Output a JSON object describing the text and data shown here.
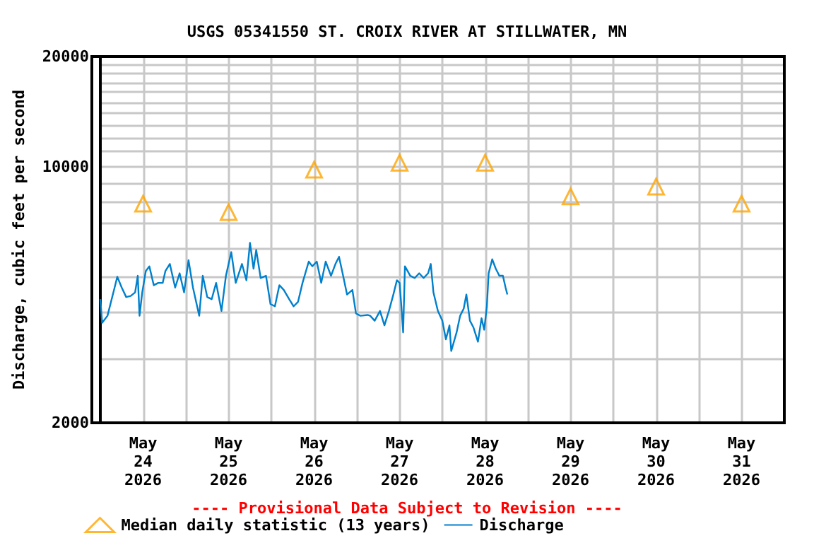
{
  "chart_data": {
    "type": "line",
    "title": "USGS 05341550 ST. CROIX RIVER AT STILLWATER, MN",
    "ylabel": "Discharge, cubic feet per second",
    "annotations": [
      "---- Provisional Data Subject to Revision ----"
    ],
    "log": true,
    "grid": true,
    "legend": "bottom",
    "xlim": [
      "2026-05-24T00:00",
      "2026-06-01T00:00"
    ],
    "xticks": [
      {
        "value": "2026-05-24T12:00",
        "label": "May\n24\n2026"
      },
      {
        "value": "2026-05-25T12:00",
        "label": "May\n25\n2026"
      },
      {
        "value": "2026-05-26T12:00",
        "label": "May\n26\n2026"
      },
      {
        "value": "2026-05-27T12:00",
        "label": "May\n27\n2026"
      },
      {
        "value": "2026-05-28T12:00",
        "label": "May\n28\n2026"
      },
      {
        "value": "2026-05-29T12:00",
        "label": "May\n29\n2026"
      },
      {
        "value": "2026-05-30T12:00",
        "label": "May\n30\n2026"
      },
      {
        "value": "2026-05-31T12:00",
        "label": "May\n31\n2026"
      },
      {
        "value": "2026-05-25T00:00",
        "label": null
      },
      {
        "value": "2026-05-26T00:00",
        "label": null
      },
      {
        "value": "2026-05-27T00:00",
        "label": null
      },
      {
        "value": "2026-05-28T00:00",
        "label": null
      },
      {
        "value": "2026-05-29T00:00",
        "label": null
      },
      {
        "value": "2026-05-30T00:00",
        "label": null
      },
      {
        "value": "2026-05-31T00:00",
        "label": null
      }
    ],
    "ylim": [
      2000,
      20000
    ],
    "yticks": [
      2000,
      {
        "value": 3000,
        "label": null
      },
      {
        "value": 4000,
        "label": null
      },
      {
        "value": 5000,
        "label": null
      },
      {
        "value": 6000,
        "label": null
      },
      {
        "value": 7000,
        "label": null
      },
      {
        "value": 8000,
        "label": null
      },
      {
        "value": 9000,
        "label": null
      },
      10000,
      {
        "value": 11000,
        "label": null
      },
      {
        "value": 12000,
        "label": null
      },
      {
        "value": 13000,
        "label": null
      },
      {
        "value": 14000,
        "label": null
      },
      {
        "value": 15000,
        "label": null
      },
      {
        "value": 16000,
        "label": null
      },
      {
        "value": 17000,
        "label": null
      },
      {
        "value": 18000,
        "label": null
      },
      {
        "value": 19000,
        "label": null
      },
      20000
    ],
    "series": [
      {
        "name": "Median daily statistic (13 years)",
        "type": "scatter",
        "marker": "triangle",
        "color": "#ffa500",
        "x": [
          "2026-05-24T12:00",
          "2026-05-25T12:00",
          "2026-05-26T12:00",
          "2026-05-27T12:00",
          "2026-05-28T12:00",
          "2026-05-29T12:00",
          "2026-05-30T12:00",
          "2026-05-31T12:00"
        ],
        "values": [
          7930,
          7520,
          9820,
          10260,
          10260,
          8300,
          8830,
          7930
        ]
      },
      {
        "name": "Discharge",
        "marker": "none",
        "color": "#0080cc",
        "x": [
          "2026-05-24T00:00",
          "2026-05-24T00:30",
          "2026-05-24T02:00",
          "2026-05-24T04:00",
          "2026-05-24T04:45",
          "2026-05-24T06:00",
          "2026-05-24T07:15",
          "2026-05-24T08:30",
          "2026-05-24T09:45",
          "2026-05-24T10:30",
          "2026-05-24T11:00",
          "2026-05-24T11:45",
          "2026-05-24T12:45",
          "2026-05-24T13:45",
          "2026-05-24T15:00",
          "2026-05-24T16:15",
          "2026-05-24T17:30",
          "2026-05-24T18:15",
          "2026-05-24T19:30",
          "2026-05-24T21:00",
          "2026-05-24T22:15",
          "2026-05-24T23:30",
          "2026-05-25T00:45",
          "2026-05-25T02:00",
          "2026-05-25T03:45",
          "2026-05-25T04:45",
          "2026-05-25T06:00",
          "2026-05-25T07:15",
          "2026-05-25T08:30",
          "2026-05-25T10:00",
          "2026-05-25T11:15",
          "2026-05-25T12:45",
          "2026-05-25T14:00",
          "2026-05-25T15:45",
          "2026-05-25T17:00",
          "2026-05-25T18:00",
          "2026-05-25T19:00",
          "2026-05-25T19:45",
          "2026-05-25T21:00",
          "2026-05-25T22:30",
          "2026-05-25T23:45",
          "2026-05-26T01:00",
          "2026-05-26T02:15",
          "2026-05-26T03:30",
          "2026-05-26T05:00",
          "2026-05-26T06:15",
          "2026-05-26T07:30",
          "2026-05-26T08:45",
          "2026-05-26T10:30",
          "2026-05-26T11:30",
          "2026-05-26T12:45",
          "2026-05-26T14:00",
          "2026-05-26T15:15",
          "2026-05-26T16:45",
          "2026-05-26T18:00",
          "2026-05-26T19:00",
          "2026-05-26T20:00",
          "2026-05-26T21:15",
          "2026-05-26T22:45",
          "2026-05-26T23:45",
          "2026-05-27T01:00",
          "2026-05-27T03:00",
          "2026-05-27T03:45",
          "2026-05-27T05:00",
          "2026-05-27T06:30",
          "2026-05-27T07:45",
          "2026-05-27T09:00",
          "2026-05-27T10:15",
          "2026-05-27T11:15",
          "2026-05-27T12:00",
          "2026-05-27T12:30",
          "2026-05-27T13:00",
          "2026-05-27T13:30",
          "2026-05-27T15:00",
          "2026-05-27T16:15",
          "2026-05-27T17:30",
          "2026-05-27T18:45",
          "2026-05-27T20:00",
          "2026-05-27T20:45",
          "2026-05-27T21:30",
          "2026-05-27T22:45",
          "2026-05-28T00:00",
          "2026-05-28T01:00",
          "2026-05-28T02:00",
          "2026-05-28T02:30",
          "2026-05-28T04:00",
          "2026-05-28T05:00",
          "2026-05-28T06:00",
          "2026-05-28T06:45",
          "2026-05-28T07:45",
          "2026-05-28T08:45",
          "2026-05-28T10:00",
          "2026-05-28T11:00",
          "2026-05-28T11:45",
          "2026-05-28T12:30",
          "2026-05-28T13:00",
          "2026-05-28T14:00",
          "2026-05-28T15:00",
          "2026-05-28T16:00",
          "2026-05-28T17:00",
          "2026-05-28T17:45",
          "2026-05-28T18:15"
        ],
        "values": [
          4350,
          3750,
          3920,
          4680,
          5010,
          4680,
          4410,
          4440,
          4540,
          5040,
          3920,
          4540,
          5190,
          5350,
          4750,
          4820,
          4820,
          5190,
          5430,
          4680,
          5120,
          4540,
          5560,
          4680,
          3920,
          5040,
          4410,
          4350,
          4820,
          4040,
          5040,
          5850,
          4820,
          5430,
          4900,
          6200,
          5270,
          5930,
          4970,
          5040,
          4220,
          4160,
          4750,
          4610,
          4350,
          4160,
          4280,
          4820,
          5510,
          5350,
          5510,
          4820,
          5510,
          5040,
          5430,
          5680,
          5120,
          4480,
          4610,
          3980,
          3920,
          3940,
          3920,
          3800,
          4040,
          3690,
          4040,
          4480,
          4900,
          4820,
          4160,
          3530,
          5350,
          5040,
          4970,
          5120,
          4970,
          5120,
          5430,
          4540,
          4040,
          3800,
          3380,
          3690,
          3140,
          3530,
          3920,
          4100,
          4480,
          3800,
          3640,
          3330,
          3860,
          3590,
          4160,
          5120,
          5590,
          5270,
          5040,
          5040,
          4680,
          4480
        ]
      }
    ]
  }
}
